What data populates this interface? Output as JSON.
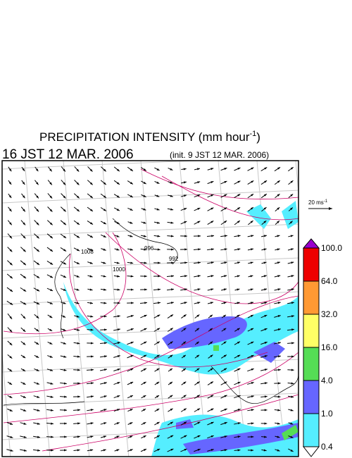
{
  "title": {
    "text": "PRECIPITATION INTENSITY (mm hour",
    "unit_exponent": "-1",
    "close": ")"
  },
  "subtitle": {
    "valid_time": "16 JST 12 MAR. 2006",
    "init_time": "(init. 9 JST 12 MAR. 2006)"
  },
  "wind_scale": {
    "label": "20 ms",
    "exponent": "-1"
  },
  "colorbar": {
    "labels": [
      "100.0",
      "64.0",
      "32.0",
      "16.0",
      "4.0",
      "1.0",
      "0.4"
    ],
    "colors": [
      "#9900cc",
      "#ee0000",
      "#ff9933",
      "#ffff66",
      "#55dd55",
      "#6666ff",
      "#55eeff",
      "#ffffff"
    ]
  },
  "contour_labels": [
    "1008",
    "1000",
    "996",
    "992"
  ]
}
